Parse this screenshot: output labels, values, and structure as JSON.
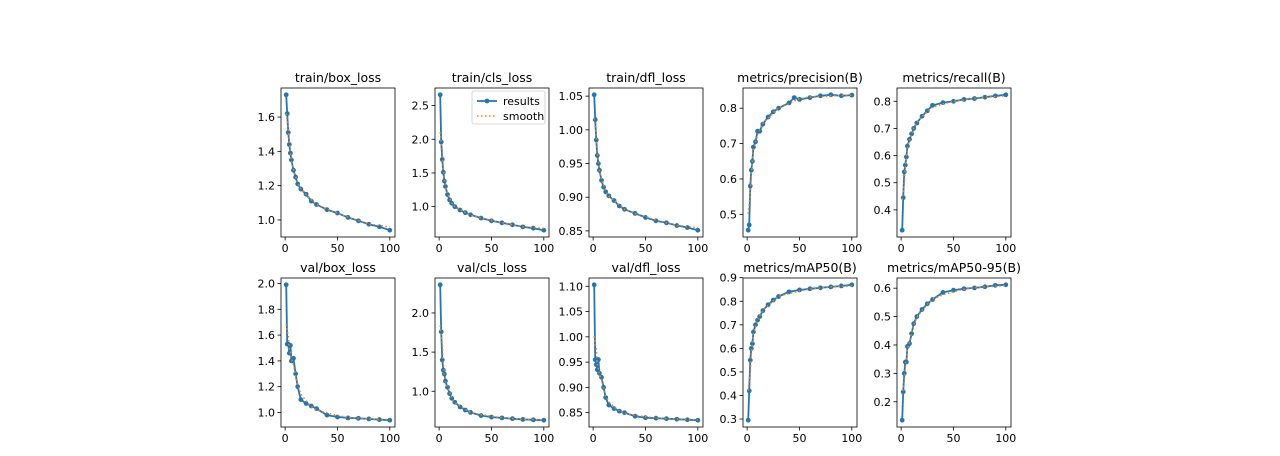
{
  "colors": {
    "results": "#1f77b4",
    "smooth": "#ff7f0e"
  },
  "legend": {
    "results": "results",
    "smooth": "smooth",
    "placement": "upper-right of train/cls_loss"
  },
  "chart_data": [
    {
      "type": "line",
      "title": "train/box_loss",
      "xticks": [
        0,
        50,
        100
      ],
      "yticks": [
        "1.0",
        "1.2",
        "1.4",
        "1.6"
      ],
      "x": [
        1,
        2,
        3,
        4,
        5,
        6,
        8,
        10,
        12,
        15,
        20,
        25,
        30,
        40,
        50,
        60,
        70,
        80,
        90,
        100
      ],
      "series": [
        {
          "name": "results",
          "values": [
            1.73,
            1.62,
            1.51,
            1.44,
            1.39,
            1.35,
            1.29,
            1.25,
            1.21,
            1.18,
            1.15,
            1.11,
            1.09,
            1.06,
            1.04,
            1.015,
            0.995,
            0.975,
            0.96,
            0.94
          ]
        }
      ]
    },
    {
      "type": "line",
      "title": "train/cls_loss",
      "legend": true,
      "xticks": [
        0,
        50,
        100
      ],
      "yticks": [
        "1.0",
        "1.5",
        "2.0",
        "2.5"
      ],
      "x": [
        1,
        2,
        3,
        4,
        5,
        6,
        8,
        10,
        12,
        15,
        20,
        25,
        30,
        40,
        50,
        60,
        70,
        80,
        90,
        100
      ],
      "series": [
        {
          "name": "results",
          "values": [
            2.66,
            1.96,
            1.7,
            1.51,
            1.38,
            1.3,
            1.18,
            1.1,
            1.05,
            1.0,
            0.95,
            0.91,
            0.88,
            0.83,
            0.79,
            0.76,
            0.73,
            0.7,
            0.68,
            0.65
          ]
        }
      ]
    },
    {
      "type": "line",
      "title": "train/dfl_loss",
      "xticks": [
        0,
        50,
        100
      ],
      "yticks": [
        "0.85",
        "0.90",
        "0.95",
        "1.00",
        "1.05"
      ],
      "x": [
        1,
        2,
        3,
        4,
        5,
        6,
        8,
        10,
        12,
        15,
        20,
        25,
        30,
        40,
        50,
        60,
        70,
        80,
        90,
        100
      ],
      "series": [
        {
          "name": "results",
          "values": [
            1.052,
            1.015,
            0.985,
            0.962,
            0.95,
            0.94,
            0.925,
            0.915,
            0.908,
            0.902,
            0.895,
            0.887,
            0.882,
            0.876,
            0.87,
            0.865,
            0.862,
            0.858,
            0.855,
            0.851
          ]
        }
      ]
    },
    {
      "type": "line",
      "title": "metrics/precision(B)",
      "xticks": [
        0,
        50,
        100
      ],
      "yticks": [
        "0.5",
        "0.6",
        "0.7",
        "0.8"
      ],
      "x": [
        1,
        2,
        3,
        4,
        5,
        6,
        8,
        10,
        12,
        15,
        20,
        25,
        30,
        40,
        45,
        50,
        60,
        70,
        80,
        90,
        100
      ],
      "series": [
        {
          "name": "results",
          "values": [
            0.455,
            0.47,
            0.58,
            0.625,
            0.65,
            0.69,
            0.705,
            0.735,
            0.735,
            0.755,
            0.775,
            0.79,
            0.8,
            0.815,
            0.83,
            0.825,
            0.83,
            0.835,
            0.838,
            0.835,
            0.837
          ]
        }
      ]
    },
    {
      "type": "line",
      "title": "metrics/recall(B)",
      "xticks": [
        0,
        50,
        100
      ],
      "yticks": [
        "0.4",
        "0.5",
        "0.6",
        "0.7",
        "0.8"
      ],
      "x": [
        1,
        2,
        3,
        4,
        5,
        6,
        8,
        10,
        12,
        15,
        20,
        25,
        30,
        40,
        50,
        60,
        70,
        80,
        90,
        100
      ],
      "series": [
        {
          "name": "results",
          "values": [
            0.325,
            0.445,
            0.54,
            0.565,
            0.595,
            0.635,
            0.66,
            0.68,
            0.7,
            0.72,
            0.745,
            0.765,
            0.785,
            0.795,
            0.8,
            0.807,
            0.81,
            0.815,
            0.82,
            0.824
          ]
        }
      ]
    },
    {
      "type": "line",
      "title": "val/box_loss",
      "xticks": [
        0,
        50,
        100
      ],
      "yticks": [
        "1.0",
        "1.2",
        "1.4",
        "1.6",
        "1.8",
        "2.0"
      ],
      "x": [
        1,
        2,
        3,
        4,
        5,
        6,
        8,
        10,
        12,
        15,
        20,
        25,
        30,
        40,
        50,
        60,
        70,
        80,
        90,
        100
      ],
      "series": [
        {
          "name": "results",
          "values": [
            1.99,
            1.53,
            1.53,
            1.46,
            1.52,
            1.4,
            1.42,
            1.3,
            1.2,
            1.1,
            1.07,
            1.05,
            1.03,
            0.98,
            0.965,
            0.958,
            0.955,
            0.95,
            0.945,
            0.94
          ]
        }
      ]
    },
    {
      "type": "line",
      "title": "val/cls_loss",
      "xticks": [
        0,
        50,
        100
      ],
      "yticks": [
        "1.0",
        "1.5",
        "2.0"
      ],
      "x": [
        1,
        2,
        3,
        4,
        5,
        6,
        8,
        10,
        12,
        15,
        20,
        25,
        30,
        40,
        50,
        60,
        70,
        80,
        90,
        100
      ],
      "series": [
        {
          "name": "results",
          "values": [
            2.36,
            1.76,
            1.4,
            1.27,
            1.22,
            1.13,
            1.05,
            0.97,
            0.91,
            0.86,
            0.8,
            0.76,
            0.73,
            0.69,
            0.67,
            0.66,
            0.65,
            0.64,
            0.635,
            0.63
          ]
        }
      ]
    },
    {
      "type": "line",
      "title": "val/dfl_loss",
      "xticks": [
        0,
        50,
        100
      ],
      "yticks": [
        "0.85",
        "0.90",
        "0.95",
        "1.00",
        "1.05",
        "1.10"
      ],
      "x": [
        1,
        2,
        3,
        4,
        5,
        6,
        8,
        10,
        12,
        15,
        20,
        25,
        30,
        40,
        50,
        60,
        70,
        80,
        90,
        100
      ],
      "series": [
        {
          "name": "results",
          "values": [
            1.103,
            0.955,
            0.945,
            0.935,
            0.955,
            0.928,
            0.92,
            0.9,
            0.88,
            0.865,
            0.858,
            0.853,
            0.85,
            0.843,
            0.84,
            0.839,
            0.838,
            0.837,
            0.836,
            0.835
          ]
        }
      ]
    },
    {
      "type": "line",
      "title": "metrics/mAP50(B)",
      "xticks": [
        0,
        50,
        100
      ],
      "yticks": [
        "0.3",
        "0.4",
        "0.5",
        "0.6",
        "0.7",
        "0.8",
        "0.9"
      ],
      "x": [
        1,
        2,
        3,
        4,
        5,
        6,
        8,
        10,
        12,
        15,
        20,
        25,
        30,
        40,
        50,
        60,
        70,
        80,
        90,
        100
      ],
      "series": [
        {
          "name": "results",
          "values": [
            0.295,
            0.42,
            0.55,
            0.6,
            0.62,
            0.67,
            0.7,
            0.72,
            0.735,
            0.76,
            0.785,
            0.805,
            0.82,
            0.84,
            0.848,
            0.853,
            0.857,
            0.861,
            0.865,
            0.87
          ]
        }
      ]
    },
    {
      "type": "line",
      "title": "metrics/mAP50-95(B)",
      "xticks": [
        0,
        50,
        100
      ],
      "yticks": [
        "0.2",
        "0.3",
        "0.4",
        "0.5",
        "0.6"
      ],
      "x": [
        1,
        2,
        3,
        4,
        5,
        6,
        8,
        10,
        12,
        15,
        20,
        25,
        30,
        40,
        50,
        60,
        70,
        80,
        90,
        100
      ],
      "series": [
        {
          "name": "results",
          "values": [
            0.135,
            0.235,
            0.3,
            0.34,
            0.34,
            0.395,
            0.405,
            0.44,
            0.475,
            0.5,
            0.525,
            0.545,
            0.56,
            0.585,
            0.593,
            0.598,
            0.601,
            0.605,
            0.61,
            0.612
          ]
        }
      ]
    }
  ]
}
